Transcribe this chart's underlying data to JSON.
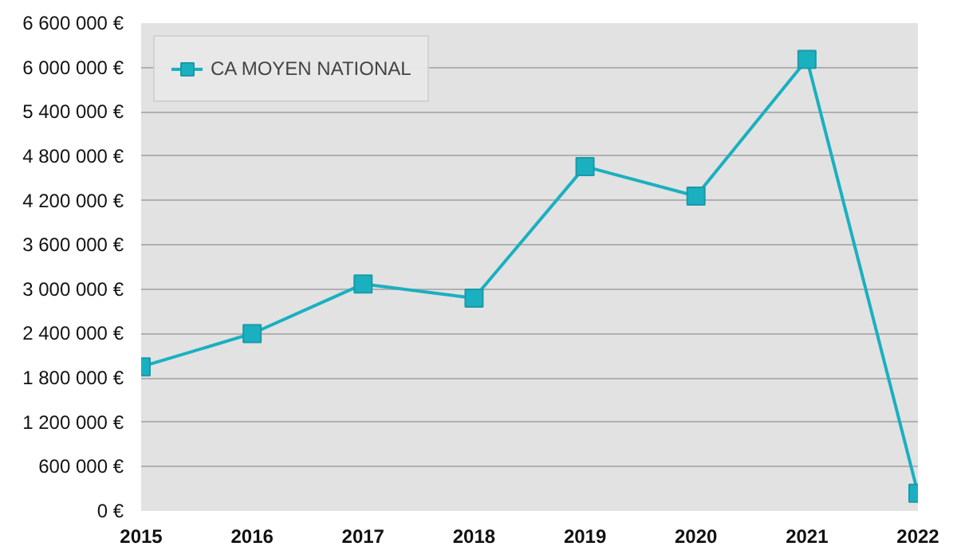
{
  "chart_data": {
    "type": "line",
    "x": [
      2015,
      2016,
      2017,
      2018,
      2019,
      2020,
      2021,
      2022
    ],
    "series": [
      {
        "name": "CA MOYEN NATIONAL",
        "color": "#1ab0c0",
        "values": [
          1950000,
          2400000,
          3070000,
          2880000,
          4660000,
          4260000,
          6110000,
          240000
        ]
      }
    ],
    "xlim": [
      2015,
      2022
    ],
    "xticks": [
      2015,
      2016,
      2017,
      2018,
      2019,
      2020,
      2021,
      2022
    ],
    "ylim": [
      0,
      6600000
    ],
    "yticks": [
      {
        "value": 0,
        "label": "0 €"
      },
      {
        "value": 600000,
        "label": "600 000 €"
      },
      {
        "value": 1200000,
        "label": "1 200 000 €"
      },
      {
        "value": 1800000,
        "label": "1 800 000 €"
      },
      {
        "value": 2400000,
        "label": "2 400 000 €"
      },
      {
        "value": 3000000,
        "label": "3 000 000 €"
      },
      {
        "value": 3600000,
        "label": "3 600 000 €"
      },
      {
        "value": 4200000,
        "label": "4 200 000 €"
      },
      {
        "value": 4800000,
        "label": "4 800 000 €"
      },
      {
        "value": 5400000,
        "label": "5 400 000 €"
      },
      {
        "value": 6000000,
        "label": "6 000 000 €"
      },
      {
        "value": 6600000,
        "label": "6 600 000 €"
      }
    ],
    "grid": "y",
    "legend": "top left",
    "marker": "square",
    "line_style": "solid"
  }
}
